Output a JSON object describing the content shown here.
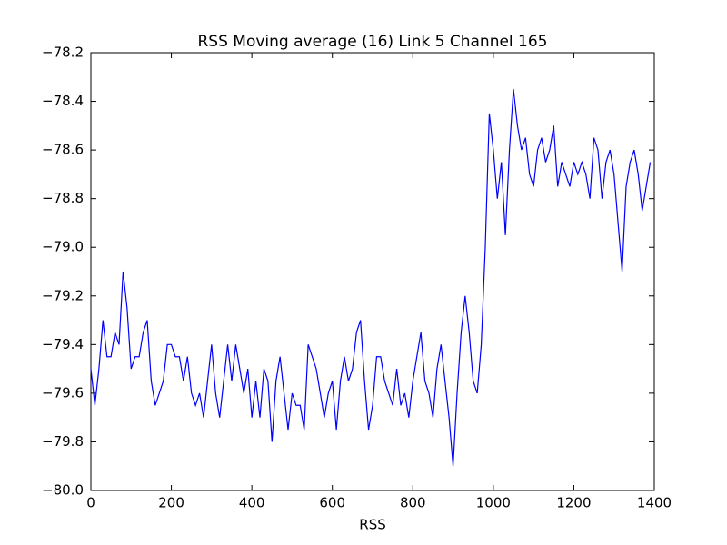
{
  "chart_data": {
    "type": "line",
    "title": "RSS Moving average (16) Link 5 Channel 165",
    "xlabel": "RSS",
    "x": [
      0,
      10,
      20,
      30,
      40,
      50,
      60,
      70,
      80,
      90,
      100,
      110,
      120,
      130,
      140,
      150,
      160,
      170,
      180,
      190,
      200,
      210,
      220,
      230,
      240,
      250,
      260,
      270,
      280,
      290,
      300,
      310,
      320,
      330,
      340,
      350,
      360,
      370,
      380,
      390,
      400,
      410,
      420,
      430,
      440,
      450,
      460,
      470,
      480,
      490,
      500,
      510,
      520,
      530,
      540,
      550,
      560,
      570,
      580,
      590,
      600,
      610,
      620,
      630,
      640,
      650,
      660,
      670,
      680,
      690,
      700,
      710,
      720,
      730,
      740,
      750,
      760,
      770,
      780,
      790,
      800,
      810,
      820,
      830,
      840,
      850,
      860,
      870,
      880,
      890,
      900,
      910,
      920,
      930,
      940,
      950,
      960,
      970,
      980,
      990,
      1000,
      1010,
      1020,
      1030,
      1040,
      1050,
      1060,
      1070,
      1080,
      1090,
      1100,
      1110,
      1120,
      1130,
      1140,
      1150,
      1160,
      1170,
      1180,
      1190,
      1200,
      1210,
      1220,
      1230,
      1240,
      1250,
      1260,
      1270,
      1280,
      1290,
      1300,
      1310,
      1320,
      1330,
      1340,
      1350,
      1360,
      1370,
      1380,
      1390
    ],
    "series": [
      {
        "color": "#0000ff",
        "values": [
          -79.5,
          -79.65,
          -79.5,
          -79.3,
          -79.45,
          -79.45,
          -79.35,
          -79.4,
          -79.1,
          -79.25,
          -79.5,
          -79.45,
          -79.45,
          -79.35,
          -79.3,
          -79.55,
          -79.65,
          -79.6,
          -79.55,
          -79.4,
          -79.4,
          -79.45,
          -79.45,
          -79.55,
          -79.45,
          -79.6,
          -79.65,
          -79.6,
          -79.7,
          -79.55,
          -79.4,
          -79.6,
          -79.7,
          -79.55,
          -79.4,
          -79.55,
          -79.4,
          -79.5,
          -79.6,
          -79.5,
          -79.7,
          -79.55,
          -79.7,
          -79.5,
          -79.55,
          -79.8,
          -79.55,
          -79.45,
          -79.6,
          -79.75,
          -79.6,
          -79.65,
          -79.65,
          -79.75,
          -79.4,
          -79.45,
          -79.5,
          -79.6,
          -79.7,
          -79.6,
          -79.55,
          -79.75,
          -79.55,
          -79.45,
          -79.55,
          -79.5,
          -79.35,
          -79.3,
          -79.55,
          -79.75,
          -79.65,
          -79.45,
          -79.45,
          -79.55,
          -79.6,
          -79.65,
          -79.5,
          -79.65,
          -79.6,
          -79.7,
          -79.55,
          -79.45,
          -79.35,
          -79.55,
          -79.6,
          -79.7,
          -79.5,
          -79.4,
          -79.55,
          -79.7,
          -79.9,
          -79.6,
          -79.35,
          -79.2,
          -79.35,
          -79.55,
          -79.6,
          -79.4,
          -79.0,
          -78.45,
          -78.6,
          -78.8,
          -78.65,
          -78.95,
          -78.6,
          -78.35,
          -78.5,
          -78.6,
          -78.55,
          -78.7,
          -78.75,
          -78.6,
          -78.55,
          -78.65,
          -78.6,
          -78.5,
          -78.75,
          -78.65,
          -78.7,
          -78.75,
          -78.65,
          -78.7,
          -78.65,
          -78.7,
          -78.8,
          -78.55,
          -78.6,
          -78.8,
          -78.65,
          -78.6,
          -78.7,
          -78.9,
          -79.1,
          -78.75,
          -78.65,
          -78.6,
          -78.7,
          -78.85,
          -78.75,
          -78.65
        ]
      }
    ],
    "xlim": [
      0,
      1400
    ],
    "xticks": [
      0,
      200,
      400,
      600,
      800,
      1000,
      1200,
      1400
    ],
    "ylim": [
      -80.0,
      -78.2
    ],
    "yticks": [
      {
        "value": -80.0,
        "label": "−80.0"
      },
      {
        "value": -79.8,
        "label": "−79.8"
      },
      {
        "value": -79.6,
        "label": "−79.6"
      },
      {
        "value": -79.4,
        "label": "−79.4"
      },
      {
        "value": -79.2,
        "label": "−79.2"
      },
      {
        "value": -79.0,
        "label": "−79.0"
      },
      {
        "value": -78.8,
        "label": "−78.8"
      },
      {
        "value": -78.6,
        "label": "−78.6"
      },
      {
        "value": -78.4,
        "label": "−78.4"
      },
      {
        "value": -78.2,
        "label": "−78.2"
      }
    ],
    "grid": false
  }
}
